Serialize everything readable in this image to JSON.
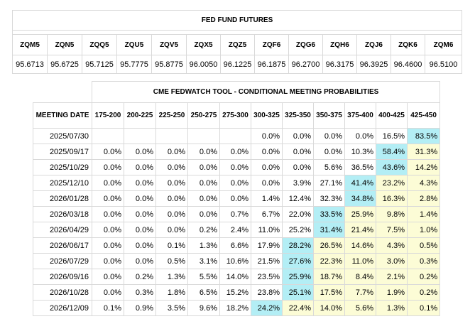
{
  "futures": {
    "title": "FED FUND FUTURES",
    "contracts": [
      "ZQM5",
      "ZQN5",
      "ZQQ5",
      "ZQU5",
      "ZQV5",
      "ZQX5",
      "ZQZ5",
      "ZQF6",
      "ZQG6",
      "ZQH6",
      "ZQJ6",
      "ZQK6",
      "ZQM6"
    ],
    "prices": [
      "95.6713",
      "95.6725",
      "95.7125",
      "95.7775",
      "95.8775",
      "96.0050",
      "96.1225",
      "96.1875",
      "96.2700",
      "96.3175",
      "96.3925",
      "96.4600",
      "96.5100"
    ]
  },
  "fedwatch": {
    "title": "CME FEDWATCH TOOL - CONDITIONAL MEETING PROBABILITIES",
    "date_header": "MEETING DATE",
    "ranges": [
      "175-200",
      "200-225",
      "225-250",
      "250-275",
      "275-300",
      "300-325",
      "325-350",
      "350-375",
      "375-400",
      "400-425",
      "425-450"
    ],
    "colors": {
      "highlight": "#b3eef5",
      "yellow": "#fcfcd6",
      "border": "#d9d9d9"
    },
    "rows": [
      {
        "date": "2025/07/30",
        "vals": [
          "",
          "",
          "",
          "",
          "",
          "0.0%",
          "0.0%",
          "0.0%",
          "0.0%",
          "16.5%",
          "83.5%"
        ],
        "max": 10
      },
      {
        "date": "2025/09/17",
        "vals": [
          "0.0%",
          "0.0%",
          "0.0%",
          "0.0%",
          "0.0%",
          "0.0%",
          "0.0%",
          "0.0%",
          "10.3%",
          "58.4%",
          "31.3%"
        ],
        "max": 9
      },
      {
        "date": "2025/10/29",
        "vals": [
          "0.0%",
          "0.0%",
          "0.0%",
          "0.0%",
          "0.0%",
          "0.0%",
          "0.0%",
          "5.6%",
          "36.5%",
          "43.6%",
          "14.2%"
        ],
        "max": 9
      },
      {
        "date": "2025/12/10",
        "vals": [
          "0.0%",
          "0.0%",
          "0.0%",
          "0.0%",
          "0.0%",
          "0.0%",
          "3.9%",
          "27.1%",
          "41.4%",
          "23.2%",
          "4.3%"
        ],
        "max": 8
      },
      {
        "date": "2026/01/28",
        "vals": [
          "0.0%",
          "0.0%",
          "0.0%",
          "0.0%",
          "0.0%",
          "1.4%",
          "12.4%",
          "32.3%",
          "34.8%",
          "16.3%",
          "2.8%"
        ],
        "max": 8
      },
      {
        "date": "2026/03/18",
        "vals": [
          "0.0%",
          "0.0%",
          "0.0%",
          "0.0%",
          "0.7%",
          "6.7%",
          "22.0%",
          "33.5%",
          "25.9%",
          "9.8%",
          "1.4%"
        ],
        "max": 7
      },
      {
        "date": "2026/04/29",
        "vals": [
          "0.0%",
          "0.0%",
          "0.0%",
          "0.2%",
          "2.4%",
          "11.0%",
          "25.2%",
          "31.4%",
          "21.4%",
          "7.5%",
          "1.0%"
        ],
        "max": 7
      },
      {
        "date": "2026/06/17",
        "vals": [
          "0.0%",
          "0.0%",
          "0.1%",
          "1.3%",
          "6.6%",
          "17.9%",
          "28.2%",
          "26.5%",
          "14.6%",
          "4.3%",
          "0.5%"
        ],
        "max": 6
      },
      {
        "date": "2026/07/29",
        "vals": [
          "0.0%",
          "0.0%",
          "0.5%",
          "3.1%",
          "10.6%",
          "21.5%",
          "27.6%",
          "22.3%",
          "11.0%",
          "3.0%",
          "0.3%"
        ],
        "max": 6
      },
      {
        "date": "2026/09/16",
        "vals": [
          "0.0%",
          "0.2%",
          "1.3%",
          "5.5%",
          "14.0%",
          "23.5%",
          "25.9%",
          "18.7%",
          "8.4%",
          "2.1%",
          "0.2%"
        ],
        "max": 6
      },
      {
        "date": "2026/10/28",
        "vals": [
          "0.0%",
          "0.3%",
          "1.8%",
          "6.5%",
          "15.2%",
          "23.8%",
          "25.1%",
          "17.5%",
          "7.7%",
          "1.9%",
          "0.2%"
        ],
        "max": 6
      },
      {
        "date": "2026/12/09",
        "vals": [
          "0.1%",
          "0.9%",
          "3.5%",
          "9.6%",
          "18.2%",
          "24.2%",
          "22.4%",
          "14.0%",
          "5.6%",
          "1.3%",
          "0.1%"
        ],
        "max": 5
      }
    ]
  }
}
